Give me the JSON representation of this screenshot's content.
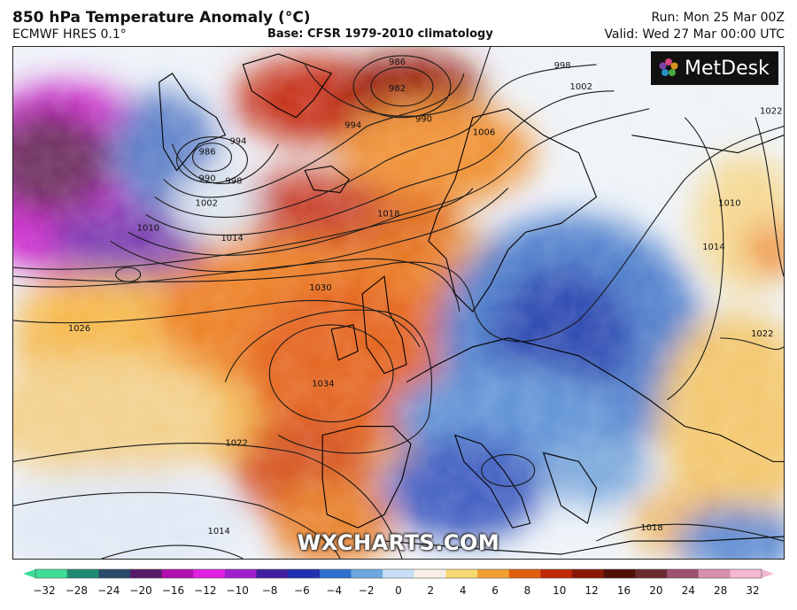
{
  "header": {
    "title": "850 hPa Temperature Anomaly (°C)",
    "model": "ECMWF HRES 0.1°",
    "base": "Base: CFSR 1979-2010 climatology",
    "run": "Run: Mon 25 Mar 00Z",
    "valid": "Valid: Wed 27 Mar 00:00 UTC"
  },
  "brand": {
    "logo": "MetDesk",
    "logo_icon": "metdesk-flower-icon",
    "watermark": "WXCHARTS.COM"
  },
  "colorbar": {
    "ticks": [
      "−32",
      "−28",
      "−24",
      "−20",
      "−16",
      "−12",
      "−10",
      "−8",
      "−6",
      "−4",
      "−2",
      "0",
      "2",
      "4",
      "6",
      "8",
      "10",
      "12",
      "16",
      "20",
      "24",
      "28",
      "32"
    ],
    "colors": [
      "#3ddc97",
      "#1e8a6f",
      "#2a4a6a",
      "#5a1a6a",
      "#b010b0",
      "#e020e0",
      "#a020d0",
      "#4020a0",
      "#2030b0",
      "#2f6fd0",
      "#6fa8e0",
      "#c8e0f5",
      "#f8f0e8",
      "#f8d870",
      "#f0a030",
      "#e06010",
      "#c02808",
      "#8a1808",
      "#501008",
      "#6a2a30",
      "#a05070",
      "#d890b0",
      "#f4b8d0"
    ]
  },
  "isobars": [
    "982",
    "986",
    "986",
    "990",
    "990",
    "994",
    "994",
    "998",
    "998",
    "1002",
    "1002",
    "1006",
    "1010",
    "1010",
    "1014",
    "1014",
    "1014",
    "1018",
    "1018",
    "1022",
    "1022",
    "1022",
    "1026",
    "1030",
    "1034"
  ]
}
